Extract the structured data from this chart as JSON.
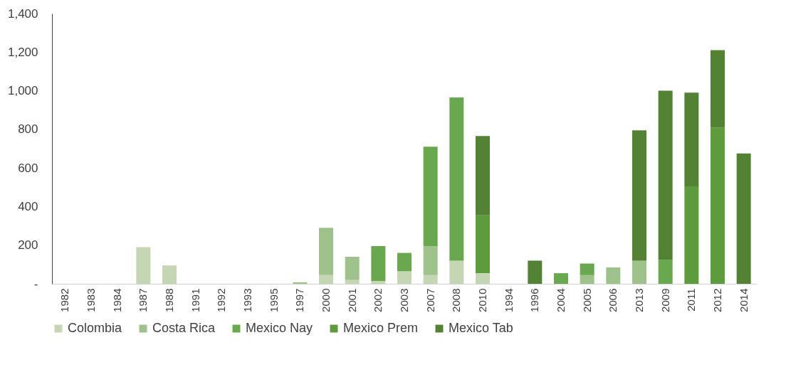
{
  "chart_data": {
    "type": "bar",
    "stacked": true,
    "categories": [
      "1982",
      "1983",
      "1984",
      "1987",
      "1988",
      "1991",
      "1992",
      "1993",
      "1995",
      "1997",
      "2000",
      "2001",
      "2002",
      "2003",
      "2007",
      "2008",
      "2010",
      "1994",
      "1996",
      "2004",
      "2005",
      "2006",
      "2013",
      "2009",
      "2011",
      "2012",
      "2014"
    ],
    "series": [
      {
        "name": "Colombia",
        "color": "#c4d6b4",
        "values": [
          null,
          null,
          null,
          190,
          95,
          null,
          null,
          null,
          null,
          null,
          45,
          20,
          15,
          65,
          45,
          120,
          55,
          null,
          null,
          null,
          null,
          null,
          null,
          null,
          null,
          null,
          null
        ]
      },
      {
        "name": "Costa Rica",
        "color": "#9fc18c",
        "values": [
          null,
          null,
          null,
          null,
          null,
          null,
          null,
          null,
          null,
          8,
          245,
          120,
          null,
          null,
          150,
          null,
          null,
          null,
          null,
          null,
          45,
          85,
          120,
          null,
          null,
          null,
          null
        ]
      },
      {
        "name": "Mexico Nay",
        "color": "#6aa84f",
        "values": [
          null,
          null,
          null,
          null,
          null,
          null,
          null,
          null,
          null,
          null,
          null,
          null,
          180,
          95,
          515,
          845,
          null,
          null,
          null,
          55,
          60,
          null,
          null,
          125,
          null,
          null,
          null
        ]
      },
      {
        "name": "Mexico Prem",
        "color": "#5e9b3d",
        "values": [
          null,
          null,
          null,
          null,
          null,
          null,
          null,
          null,
          null,
          null,
          null,
          null,
          null,
          null,
          null,
          null,
          300,
          null,
          null,
          null,
          null,
          null,
          null,
          null,
          505,
          810,
          null
        ]
      },
      {
        "name": "Mexico Tab",
        "color": "#548235",
        "values": [
          null,
          null,
          null,
          null,
          null,
          null,
          null,
          null,
          null,
          null,
          null,
          null,
          null,
          null,
          null,
          null,
          410,
          null,
          120,
          null,
          null,
          null,
          675,
          875,
          485,
          400,
          675
        ]
      }
    ],
    "ylim": [
      0,
      1400
    ],
    "yticks": [
      {
        "value": 0,
        "label": "-"
      },
      200,
      400,
      600,
      800,
      {
        "value": 1000,
        "label": "1,000"
      },
      {
        "value": 1200,
        "label": "1,200"
      },
      {
        "value": 1400,
        "label": "1,400"
      }
    ],
    "grid": false,
    "legend": "bottom"
  }
}
